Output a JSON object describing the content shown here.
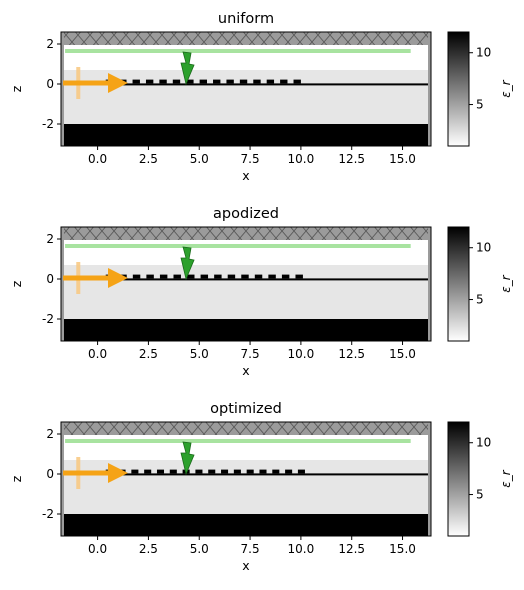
{
  "chart_data": [
    {
      "type": "heatmap",
      "title": "uniform",
      "xlabel": "x",
      "ylabel": "z",
      "xlim": [
        -1.8,
        16.4
      ],
      "ylim": [
        -3.1,
        2.6
      ],
      "xticks": [
        "0.0",
        "2.5",
        "5.0",
        "7.5",
        "10.0",
        "12.5",
        "15.0"
      ],
      "yticks": [
        "2",
        "0",
        "-2"
      ],
      "colorbar": {
        "label": "ε_r",
        "range": [
          1,
          12
        ],
        "ticks": [
          "10",
          "5"
        ]
      },
      "grating": {
        "x_start": 0.4,
        "x_end": 10.0,
        "tooth_count": 15
      }
    },
    {
      "type": "heatmap",
      "title": "apodized",
      "xlabel": "x",
      "ylabel": "z",
      "xlim": [
        -1.8,
        16.4
      ],
      "ylim": [
        -3.1,
        2.6
      ],
      "xticks": [
        "0.0",
        "2.5",
        "5.0",
        "7.5",
        "10.0",
        "12.5",
        "15.0"
      ],
      "yticks": [
        "2",
        "0",
        "-2"
      ],
      "colorbar": {
        "label": "ε_r",
        "range": [
          1,
          12
        ],
        "ticks": [
          "10",
          "5"
        ]
      },
      "grating": {
        "x_start": 0.4,
        "x_end": 10.1,
        "tooth_count": 15
      }
    },
    {
      "type": "heatmap",
      "title": "optimized",
      "xlabel": "x",
      "ylabel": "z",
      "xlim": [
        -1.8,
        16.4
      ],
      "ylim": [
        -3.1,
        2.6
      ],
      "xticks": [
        "0.0",
        "2.5",
        "5.0",
        "7.5",
        "10.0",
        "12.5",
        "15.0"
      ],
      "yticks": [
        "2",
        "0",
        "-2"
      ],
      "colorbar": {
        "label": "ε_r",
        "range": [
          1,
          12
        ],
        "ticks": [
          "10",
          "5"
        ]
      },
      "grating": {
        "x_start": 0.4,
        "x_end": 10.2,
        "tooth_count": 16
      }
    }
  ]
}
